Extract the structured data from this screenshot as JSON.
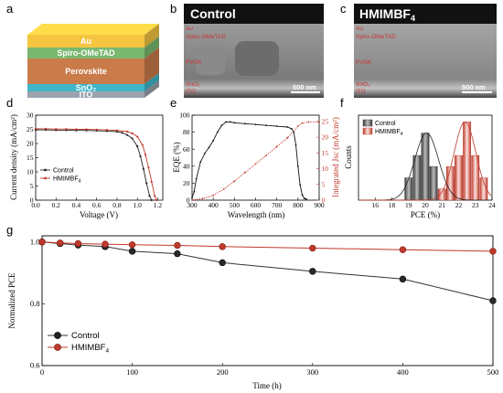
{
  "panels": {
    "a": "a",
    "b": "b",
    "c": "c",
    "d": "d",
    "e": "e",
    "f": "f",
    "g": "g"
  },
  "device_stack": {
    "layers": [
      {
        "label": "Au",
        "color": "#f5c542"
      },
      {
        "label": "Spiro-OMeTAD",
        "color": "#7ab870"
      },
      {
        "label": "Perovskite",
        "color": "#c97b4a"
      },
      {
        "label": "SnO₂",
        "color": "#3fb6c9"
      },
      {
        "label": "ITO",
        "color": "#9aa3ad"
      }
    ]
  },
  "sem": {
    "control": {
      "title": "Control",
      "layers": [
        "Au",
        "Spiro-OMeTAD",
        "PVSK",
        "SnO₂",
        "ITO"
      ],
      "scale_bar": "500 nm"
    },
    "hmimbf4": {
      "title_main": "HMIMBF",
      "title_sub": "4",
      "layers": [
        "Au",
        "Spiro-OMeTAD",
        "PVSK",
        "SnO₂",
        "ITO"
      ],
      "scale_bar": "500 nm"
    }
  },
  "charts": {
    "d": {
      "xlabel": "Voltage (V)",
      "ylabel": "Current density (mA/cm²)",
      "xticks": [
        "0.0",
        "0.2",
        "0.4",
        "0.6",
        "0.8",
        "1.0",
        "1.2"
      ],
      "yticks": [
        "0",
        "5",
        "10",
        "15",
        "20",
        "25",
        "30"
      ],
      "legend": [
        {
          "label": "Control",
          "sub": ""
        },
        {
          "label": "HMIMBF",
          "sub": "4"
        }
      ]
    },
    "e": {
      "xlabel": "Wavelength (nm)",
      "ylabel": "EQE (%)",
      "y2label": "Integrated Jsc (mA/cm²)",
      "xticks": [
        "300",
        "400",
        "500",
        "600",
        "700",
        "800",
        "900"
      ],
      "yticks": [
        "0",
        "20",
        "40",
        "60",
        "80",
        "100"
      ],
      "y2ticks": [
        "0",
        "5",
        "10",
        "15",
        "20",
        "25"
      ]
    },
    "f": {
      "xlabel": "PCE (%)",
      "ylabel": "Counts",
      "xticks": [
        "16",
        "18",
        "19",
        "20",
        "21",
        "22",
        "23",
        "24"
      ],
      "legend": [
        {
          "label": "Control",
          "sub": ""
        },
        {
          "label": "HMIMBF",
          "sub": "4"
        }
      ]
    },
    "g": {
      "xlabel": "Time (h)",
      "ylabel": "Normalized PCE",
      "xticks": [
        "0",
        "100",
        "200",
        "300",
        "400",
        "500"
      ],
      "yticks": [
        "0.6",
        "0.8",
        "1.0"
      ],
      "legend": [
        {
          "label": "Control",
          "sub": ""
        },
        {
          "label": "HMIMBF",
          "sub": "4"
        }
      ]
    }
  },
  "chart_data": [
    {
      "id": "d",
      "type": "line",
      "xlim": [
        0,
        1.25
      ],
      "ylim": [
        0,
        30
      ],
      "series": [
        {
          "name": "Control",
          "color": "#222222",
          "x": [
            0,
            0.1,
            0.2,
            0.3,
            0.4,
            0.5,
            0.6,
            0.7,
            0.8,
            0.85,
            0.9,
            0.95,
            1.0,
            1.03,
            1.06,
            1.09,
            1.12,
            1.14
          ],
          "y": [
            24.8,
            24.8,
            24.7,
            24.7,
            24.6,
            24.6,
            24.5,
            24.4,
            24.2,
            23.8,
            23.0,
            21.8,
            19.0,
            15.5,
            11.0,
            6.0,
            1.5,
            0
          ]
        },
        {
          "name": "HMIMBF4",
          "color": "#c0392b",
          "x": [
            0,
            0.1,
            0.2,
            0.3,
            0.4,
            0.5,
            0.6,
            0.7,
            0.8,
            0.9,
            0.95,
            1.0,
            1.05,
            1.08,
            1.11,
            1.14,
            1.17,
            1.19
          ],
          "y": [
            25.2,
            25.2,
            25.1,
            25.1,
            25.0,
            25.0,
            24.9,
            24.8,
            24.6,
            24.2,
            23.6,
            22.4,
            19.5,
            16.0,
            11.5,
            6.5,
            1.5,
            0
          ]
        }
      ]
    },
    {
      "id": "e",
      "type": "line",
      "xlim": [
        300,
        900
      ],
      "ylim": [
        0,
        100
      ],
      "y2lim": [
        0,
        27
      ],
      "series": [
        {
          "name": "EQE",
          "color": "#111111",
          "axis": "left",
          "x": [
            300,
            310,
            320,
            340,
            360,
            380,
            400,
            420,
            440,
            460,
            480,
            500,
            550,
            600,
            650,
            700,
            750,
            770,
            780,
            790,
            800,
            810,
            820,
            830,
            840
          ],
          "y": [
            3,
            10,
            25,
            45,
            55,
            62,
            70,
            80,
            88,
            92,
            92,
            91,
            90,
            89,
            88,
            87,
            86,
            84,
            80,
            65,
            40,
            18,
            6,
            2,
            1
          ]
        },
        {
          "name": "Integrated Jsc",
          "color": "#c0392b",
          "axis": "right",
          "x": [
            300,
            350,
            400,
            450,
            500,
            550,
            600,
            650,
            700,
            750,
            800,
            820,
            850,
            900
          ],
          "y": [
            0,
            0.5,
            1.5,
            3.5,
            6,
            8.8,
            11.5,
            14.2,
            17,
            19.8,
            23.5,
            24.5,
            24.8,
            24.8
          ]
        }
      ]
    },
    {
      "id": "f",
      "type": "bar",
      "xlim": [
        16,
        24
      ],
      "ylim": [
        0,
        7.6
      ],
      "series": [
        {
          "name": "Control",
          "color": "#6b6b6b",
          "x": [
            19.0,
            19.5,
            20.0,
            20.5,
            21.0,
            21.5
          ],
          "values": [
            2,
            4,
            6,
            3,
            1,
            2
          ]
        },
        {
          "name": "HMIMBF4",
          "color": "#d9827a",
          "x": [
            21.0,
            21.5,
            22.0,
            22.5,
            23.0,
            23.5
          ],
          "values": [
            1,
            3,
            4,
            7,
            4,
            2
          ]
        }
      ]
    },
    {
      "id": "g",
      "type": "line",
      "xlim": [
        0,
        500
      ],
      "ylim": [
        0.6,
        1.02
      ],
      "series": [
        {
          "name": "Control",
          "color": "#333333",
          "x": [
            0,
            20,
            40,
            70,
            100,
            150,
            200,
            300,
            400,
            500
          ],
          "y": [
            1.0,
            0.995,
            0.99,
            0.985,
            0.97,
            0.962,
            0.933,
            0.905,
            0.88,
            0.81
          ]
        },
        {
          "name": "HMIMBF4",
          "color": "#c0392b",
          "x": [
            0,
            20,
            40,
            70,
            100,
            150,
            200,
            300,
            400,
            500
          ],
          "y": [
            1.0,
            0.997,
            0.995,
            0.993,
            0.991,
            0.989,
            0.985,
            0.98,
            0.975,
            0.97
          ]
        }
      ]
    }
  ]
}
